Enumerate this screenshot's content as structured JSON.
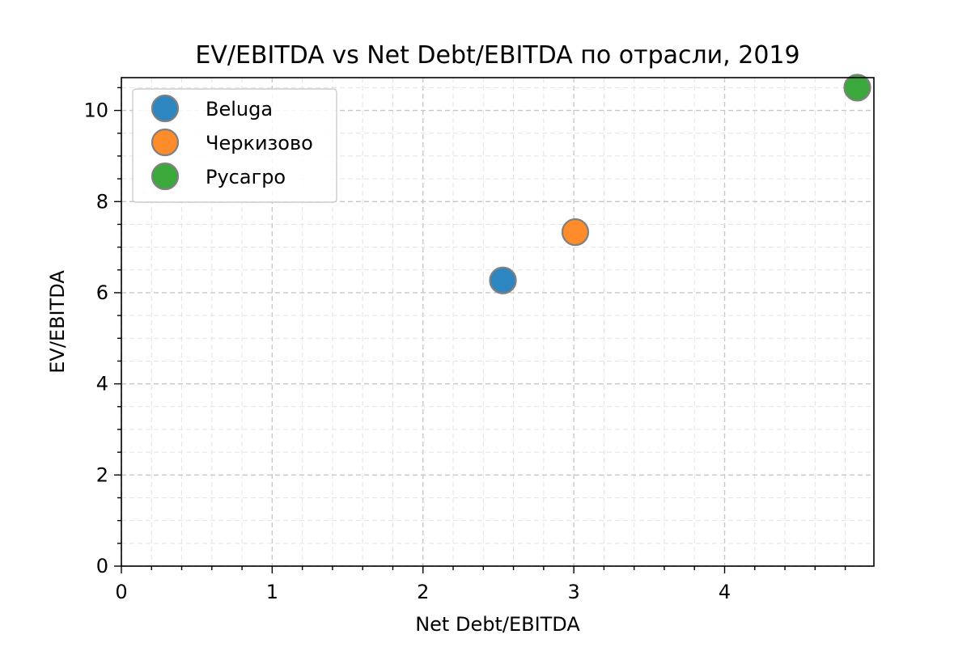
{
  "chart_data": {
    "type": "scatter",
    "title": "EV/EBITDA vs Net Debt/EBITDA по отрасли, 2019",
    "xlabel": "Net Debt/EBITDA",
    "ylabel": "EV/EBITDA",
    "xlim": [
      0,
      4.99
    ],
    "ylim": [
      0,
      10.72
    ],
    "xticks": [
      0,
      1,
      2,
      3,
      4
    ],
    "yticks": [
      0,
      2,
      4,
      6,
      8,
      10
    ],
    "grid": true,
    "legend_position": "top-left",
    "series": [
      {
        "name": "Beluga",
        "color": "#2e86c1",
        "points": [
          {
            "x": 2.53,
            "y": 6.27
          }
        ]
      },
      {
        "name": "Черкизово",
        "color": "#ff8c2a",
        "points": [
          {
            "x": 3.01,
            "y": 7.33
          }
        ]
      },
      {
        "name": "Русагро",
        "color": "#3aa83a",
        "points": [
          {
            "x": 4.88,
            "y": 10.5
          }
        ]
      }
    ]
  }
}
